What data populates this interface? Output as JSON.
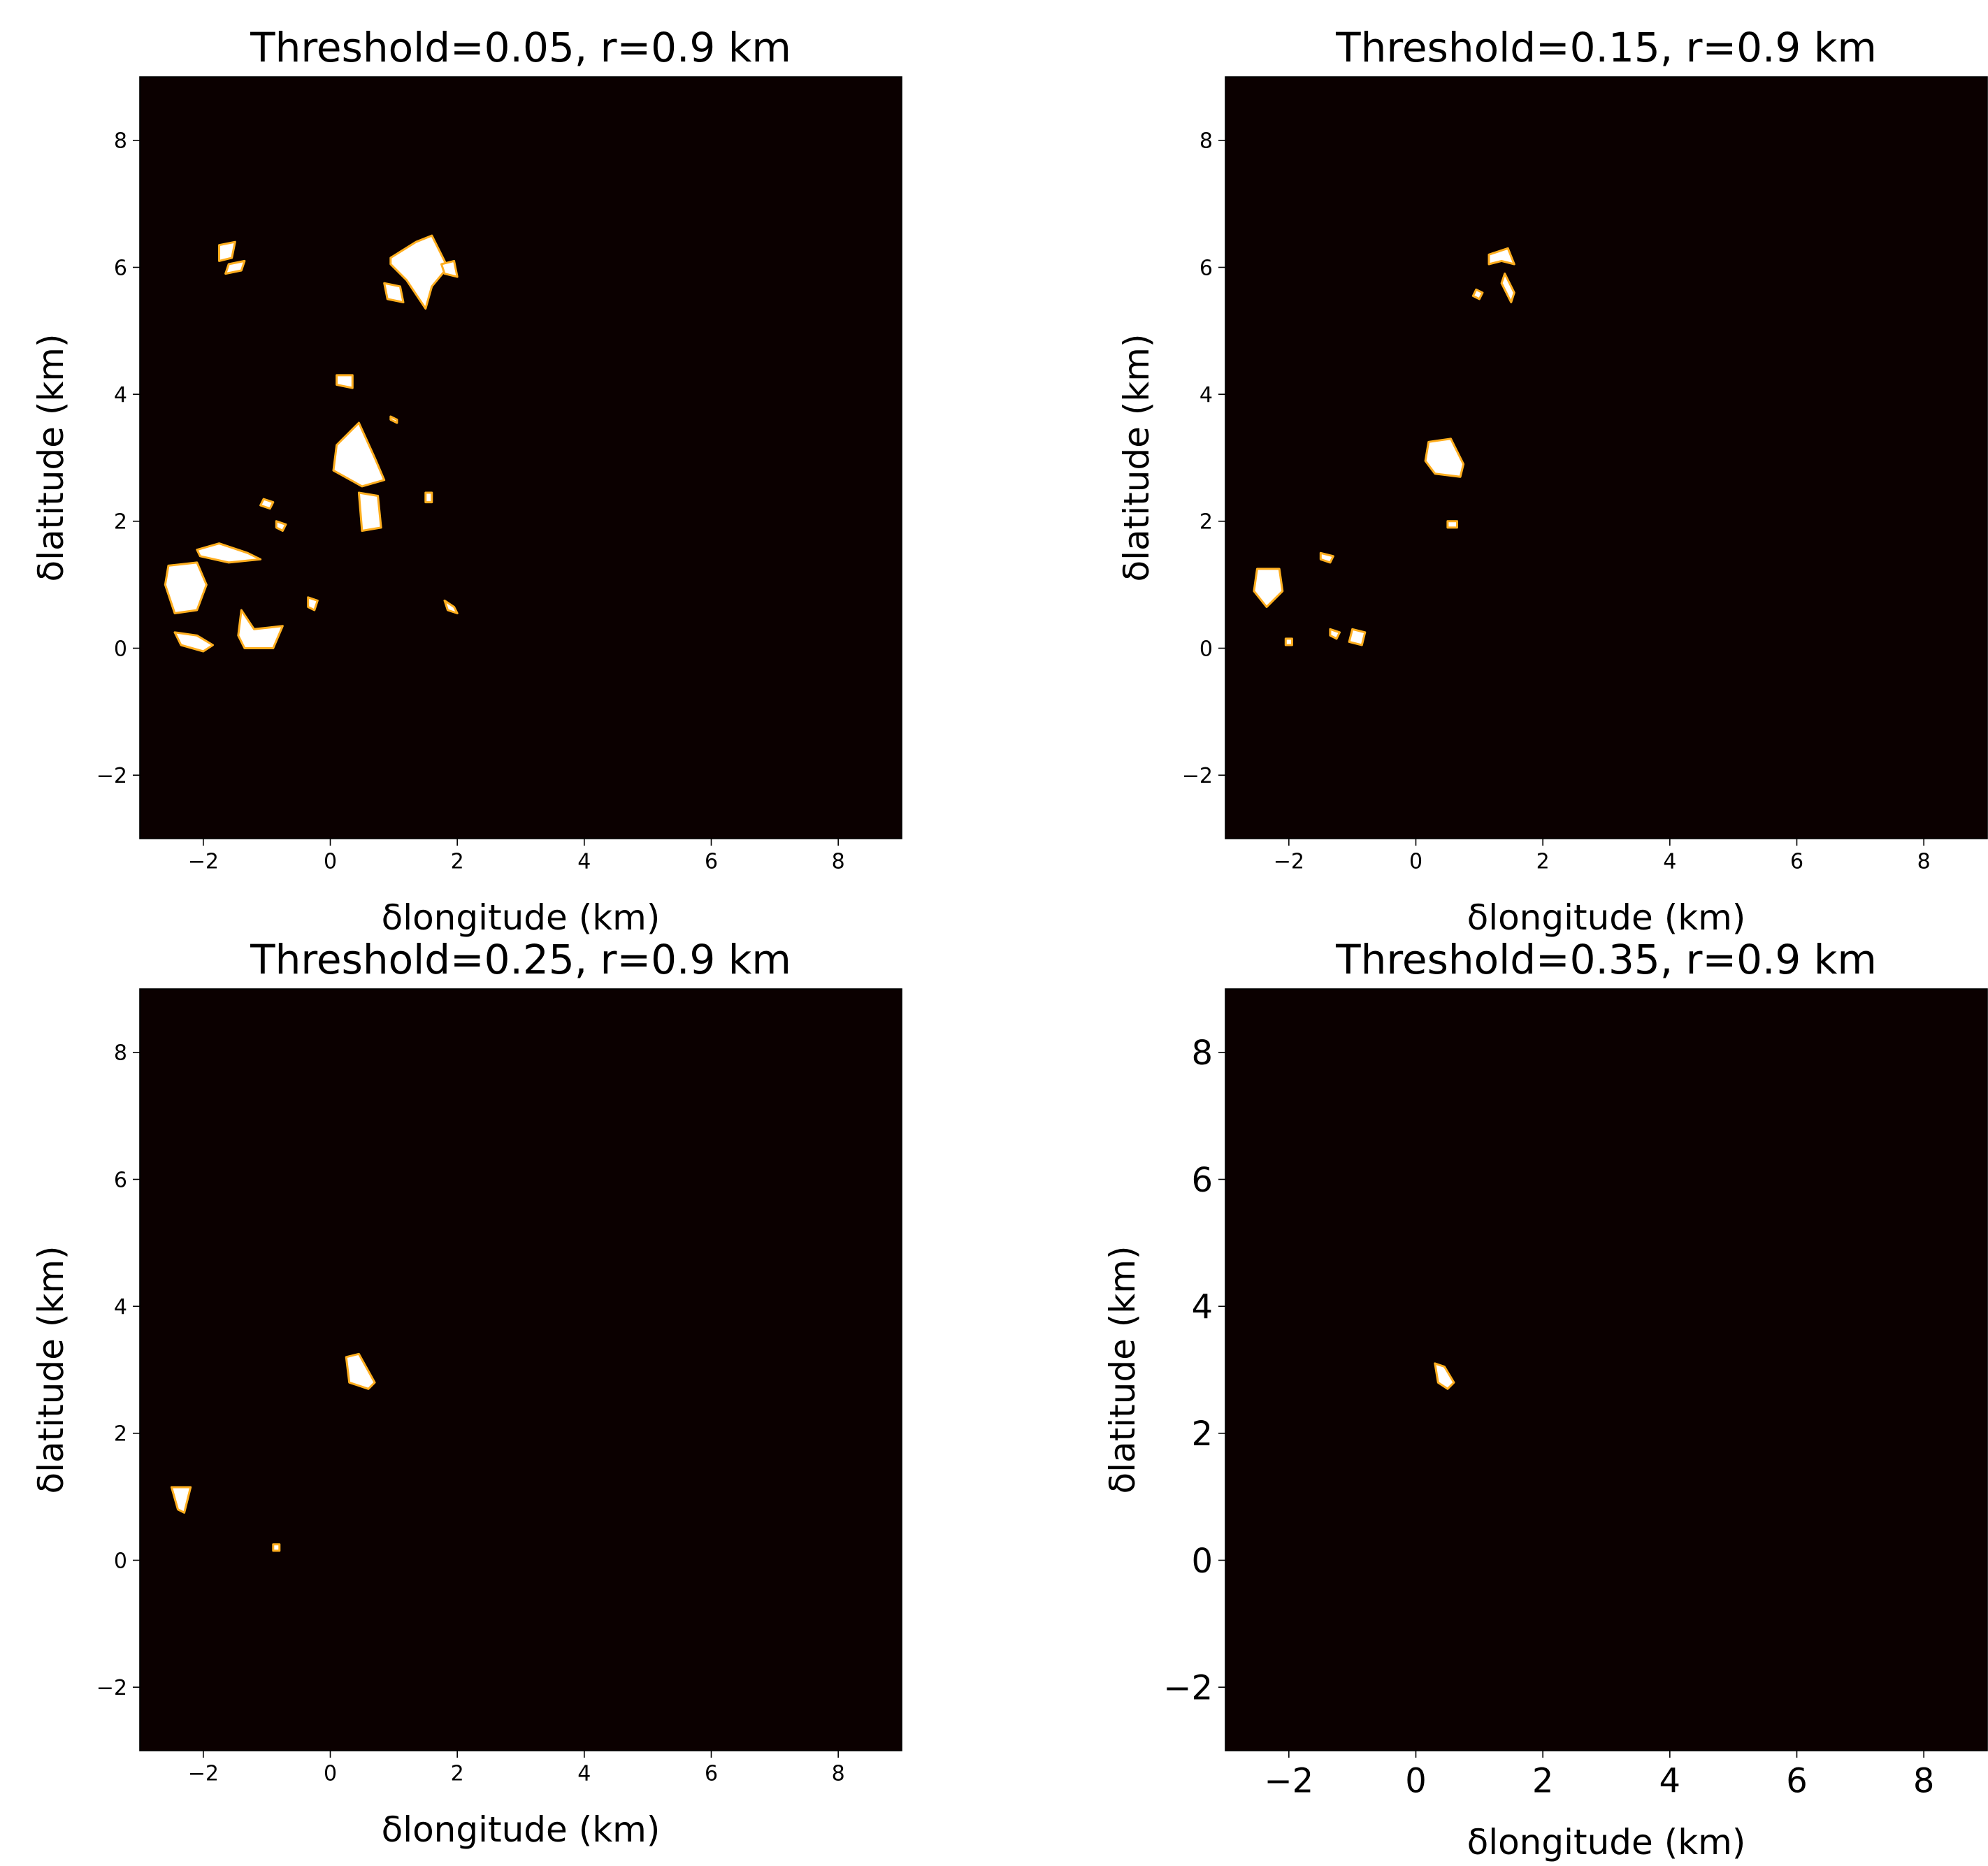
{
  "chart_data": [
    {
      "type": "heatmap",
      "title": "Threshold=0.05, r=0.9 km",
      "xlabel": "δlongitude (km)",
      "ylabel": "δlatitude (km)",
      "xlim": [
        -3,
        9
      ],
      "ylim": [
        -3,
        9
      ],
      "xticks": [
        -2,
        0,
        2,
        4,
        6,
        8
      ],
      "yticks": [
        -2,
        0,
        2,
        4,
        6,
        8
      ],
      "xtick_labels": [
        "−2",
        "0",
        "2",
        "4",
        "6",
        "8"
      ],
      "ytick_labels": [
        "−2",
        "0",
        "2",
        "4",
        "6",
        "8"
      ],
      "background_color": "#0b0000",
      "region_color": "#ffffff",
      "region_edge_color": "#ffae1f",
      "regions": [
        {
          "x": [
            -2.55,
            -2.1,
            -1.95,
            -2.1,
            -2.45,
            -2.6
          ],
          "y": [
            1.3,
            1.35,
            1.0,
            0.6,
            0.55,
            1.0
          ]
        },
        {
          "x": [
            -2.1,
            -1.75,
            -1.3,
            -1.1,
            -1.6,
            -2.05
          ],
          "y": [
            1.55,
            1.65,
            1.5,
            1.4,
            1.35,
            1.45
          ]
        },
        {
          "x": [
            -2.45,
            -2.1,
            -1.85,
            -2.0,
            -2.35
          ],
          "y": [
            0.25,
            0.2,
            0.05,
            -0.05,
            0.05
          ]
        },
        {
          "x": [
            -1.4,
            -1.2,
            -0.75,
            -0.9,
            -1.35,
            -1.45
          ],
          "y": [
            0.6,
            0.3,
            0.35,
            0.0,
            0.0,
            0.2
          ]
        },
        {
          "x": [
            -1.75,
            -1.5,
            -1.55,
            -1.75
          ],
          "y": [
            6.35,
            6.4,
            6.15,
            6.1
          ]
        },
        {
          "x": [
            -1.6,
            -1.35,
            -1.4,
            -1.65
          ],
          "y": [
            6.05,
            6.1,
            5.95,
            5.9
          ]
        },
        {
          "x": [
            0.1,
            0.45,
            0.7,
            0.85,
            0.5,
            0.05
          ],
          "y": [
            3.2,
            3.55,
            3.0,
            2.65,
            2.55,
            2.8
          ]
        },
        {
          "x": [
            0.45,
            0.75,
            0.8,
            0.5
          ],
          "y": [
            2.45,
            2.4,
            1.9,
            1.85
          ]
        },
        {
          "x": [
            0.95,
            1.35,
            1.6,
            1.85,
            1.6,
            1.5,
            1.2,
            0.95
          ],
          "y": [
            6.15,
            6.4,
            6.5,
            6.0,
            5.7,
            5.35,
            5.8,
            6.05
          ]
        },
        {
          "x": [
            0.85,
            1.1,
            1.15,
            0.9
          ],
          "y": [
            5.75,
            5.7,
            5.45,
            5.5
          ]
        },
        {
          "x": [
            1.75,
            1.95,
            2.0,
            1.8
          ],
          "y": [
            6.05,
            6.1,
            5.85,
            5.9
          ]
        },
        {
          "x": [
            0.1,
            0.35,
            0.35,
            0.1
          ],
          "y": [
            4.3,
            4.3,
            4.1,
            4.15
          ]
        },
        {
          "x": [
            -1.05,
            -0.9,
            -0.95,
            -1.1
          ],
          "y": [
            2.35,
            2.3,
            2.2,
            2.25
          ]
        },
        {
          "x": [
            -0.85,
            -0.7,
            -0.75,
            -0.85
          ],
          "y": [
            2.0,
            1.95,
            1.85,
            1.9
          ]
        },
        {
          "x": [
            -0.35,
            -0.2,
            -0.25,
            -0.35
          ],
          "y": [
            0.8,
            0.75,
            0.6,
            0.65
          ]
        },
        {
          "x": [
            1.8,
            1.95,
            2.0,
            1.85
          ],
          "y": [
            0.75,
            0.65,
            0.55,
            0.6
          ]
        },
        {
          "x": [
            0.95,
            1.05,
            1.05,
            0.95
          ],
          "y": [
            3.65,
            3.6,
            3.55,
            3.6
          ]
        },
        {
          "x": [
            1.5,
            1.6,
            1.6,
            1.5
          ],
          "y": [
            2.45,
            2.45,
            2.3,
            2.3
          ]
        }
      ]
    },
    {
      "type": "heatmap",
      "title": "Threshold=0.15, r=0.9 km",
      "xlabel": "δlongitude (km)",
      "ylabel": "δlatitude (km)",
      "xlim": [
        -3,
        9
      ],
      "ylim": [
        -3,
        9
      ],
      "xticks": [
        -2,
        0,
        2,
        4,
        6,
        8
      ],
      "yticks": [
        -2,
        0,
        2,
        4,
        6,
        8
      ],
      "xtick_labels": [
        "−2",
        "0",
        "2",
        "4",
        "6",
        "8"
      ],
      "ytick_labels": [
        "−2",
        "0",
        "2",
        "4",
        "6",
        "8"
      ],
      "background_color": "#0b0000",
      "region_color": "#ffffff",
      "region_edge_color": "#ffae1f",
      "regions": [
        {
          "x": [
            0.2,
            0.55,
            0.75,
            0.7,
            0.3,
            0.15
          ],
          "y": [
            3.25,
            3.3,
            2.9,
            2.7,
            2.75,
            2.95
          ]
        },
        {
          "x": [
            -2.5,
            -2.15,
            -2.1,
            -2.35,
            -2.55
          ],
          "y": [
            1.25,
            1.25,
            0.9,
            0.65,
            0.9
          ]
        },
        {
          "x": [
            1.15,
            1.45,
            1.55,
            1.35,
            1.15
          ],
          "y": [
            6.2,
            6.3,
            6.05,
            6.1,
            6.05
          ]
        },
        {
          "x": [
            1.4,
            1.55,
            1.5,
            1.35
          ],
          "y": [
            5.9,
            5.6,
            5.45,
            5.75
          ]
        },
        {
          "x": [
            0.95,
            1.05,
            1.0,
            0.9
          ],
          "y": [
            5.65,
            5.6,
            5.5,
            5.55
          ]
        },
        {
          "x": [
            -1.5,
            -1.3,
            -1.35,
            -1.5
          ],
          "y": [
            1.5,
            1.45,
            1.35,
            1.4
          ]
        },
        {
          "x": [
            -1.0,
            -0.8,
            -0.85,
            -1.05
          ],
          "y": [
            0.3,
            0.25,
            0.05,
            0.1
          ]
        },
        {
          "x": [
            -1.35,
            -1.2,
            -1.25,
            -1.35
          ],
          "y": [
            0.3,
            0.25,
            0.15,
            0.2
          ]
        },
        {
          "x": [
            0.5,
            0.65,
            0.65,
            0.5
          ],
          "y": [
            2.0,
            2.0,
            1.9,
            1.9
          ]
        },
        {
          "x": [
            -2.05,
            -1.95,
            -1.95,
            -2.05
          ],
          "y": [
            0.15,
            0.15,
            0.05,
            0.05
          ]
        }
      ]
    },
    {
      "type": "heatmap",
      "title": "Threshold=0.25, r=0.9 km",
      "xlabel": "δlongitude (km)",
      "ylabel": "δlatitude (km)",
      "xlim": [
        -3,
        9
      ],
      "ylim": [
        -3,
        9
      ],
      "xticks": [
        -2,
        0,
        2,
        4,
        6,
        8
      ],
      "yticks": [
        -2,
        0,
        2,
        4,
        6,
        8
      ],
      "xtick_labels": [
        "−2",
        "0",
        "2",
        "4",
        "6",
        "8"
      ],
      "ytick_labels": [
        "−2",
        "0",
        "2",
        "4",
        "6",
        "8"
      ],
      "background_color": "#0b0000",
      "region_color": "#ffffff",
      "region_edge_color": "#ffae1f",
      "regions": [
        {
          "x": [
            0.25,
            0.45,
            0.7,
            0.6,
            0.3
          ],
          "y": [
            3.2,
            3.25,
            2.8,
            2.7,
            2.8
          ]
        },
        {
          "x": [
            -2.5,
            -2.2,
            -2.3,
            -2.4
          ],
          "y": [
            1.15,
            1.15,
            0.75,
            0.8
          ]
        },
        {
          "x": [
            -0.9,
            -0.8,
            -0.8,
            -0.9
          ],
          "y": [
            0.25,
            0.25,
            0.15,
            0.15
          ]
        }
      ]
    },
    {
      "type": "heatmap",
      "title": "Threshold=0.35, r=0.9 km",
      "xlabel": "δlongitude (km)",
      "ylabel": "δlatitude (km)",
      "xlim": [
        -3,
        9
      ],
      "ylim": [
        -3,
        9
      ],
      "xticks": [
        -2,
        0,
        2,
        4,
        6,
        8
      ],
      "yticks": [
        -2,
        0,
        2,
        4,
        6,
        8
      ],
      "xtick_labels": [
        "−2",
        "0",
        "2",
        "4",
        "6",
        "8"
      ],
      "ytick_labels": [
        "−2",
        "0",
        "2",
        "4",
        "6",
        "8"
      ],
      "background_color": "#0b0000",
      "region_color": "#ffffff",
      "region_edge_color": "#ffae1f",
      "regions": [
        {
          "x": [
            0.3,
            0.45,
            0.6,
            0.5,
            0.35
          ],
          "y": [
            3.1,
            3.05,
            2.8,
            2.7,
            2.8
          ]
        }
      ]
    }
  ]
}
